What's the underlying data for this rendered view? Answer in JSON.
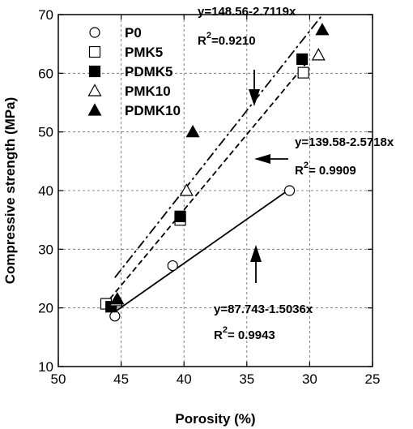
{
  "chart_data": {
    "type": "scatter",
    "xlabel": "Porosity (%)",
    "ylabel": "Compressive strength (MPa)",
    "xlim": [
      50,
      25
    ],
    "ylim": [
      10,
      70
    ],
    "x_reversed": true,
    "x_ticks": [
      50,
      45,
      40,
      35,
      30,
      25
    ],
    "y_ticks": [
      10,
      20,
      30,
      40,
      50,
      60,
      70
    ],
    "grid": "dashed",
    "legend_placement": "top-left",
    "series": [
      {
        "name": "P0",
        "marker": "circle-open",
        "points": [
          [
            45.5,
            18.6
          ],
          [
            40.9,
            27.2
          ],
          [
            31.6,
            40.0
          ]
        ]
      },
      {
        "name": "PMK5",
        "marker": "square-open",
        "points": [
          [
            46.2,
            20.7
          ],
          [
            40.3,
            35.0
          ],
          [
            30.5,
            60.1
          ]
        ]
      },
      {
        "name": "PDMK5",
        "marker": "square-filled",
        "points": [
          [
            45.8,
            20.2
          ],
          [
            40.3,
            35.6
          ],
          [
            30.6,
            62.4
          ]
        ]
      },
      {
        "name": "PMK10",
        "marker": "triangle-open",
        "points": [
          [
            45.4,
            21.2
          ],
          [
            39.8,
            40.0
          ],
          [
            29.3,
            63.1
          ]
        ]
      },
      {
        "name": "PDMK10",
        "marker": "triangle-filled",
        "points": [
          [
            45.3,
            21.5
          ],
          [
            39.3,
            50.0
          ],
          [
            29.0,
            67.4
          ]
        ]
      }
    ],
    "fit_lines": [
      {
        "style": "solid",
        "x_range": [
          45.7,
          31.6
        ]
      },
      {
        "style": "dashed",
        "x_range": [
          45.9,
          30.0
        ]
      },
      {
        "style": "dashdot",
        "x_range": [
          45.5,
          29.1
        ]
      }
    ],
    "annotations": [
      {
        "id": "eq_top",
        "equation": "y=148.56-2.7119x",
        "r2_label": "R",
        "r2_sup": "2",
        "r2_value": "=0.9210"
      },
      {
        "id": "eq_mid",
        "equation": "y=139.58-2.5718x",
        "r2_label": "R",
        "r2_sup": "2",
        "r2_value": "= 0.9909"
      },
      {
        "id": "eq_bot",
        "equation": "y=87.743-1.5036x",
        "r2_label": "R",
        "r2_sup": "2",
        "r2_value": "= 0.9943"
      }
    ],
    "arrows": [
      {
        "direction": "down"
      },
      {
        "direction": "left"
      },
      {
        "direction": "up"
      }
    ]
  }
}
